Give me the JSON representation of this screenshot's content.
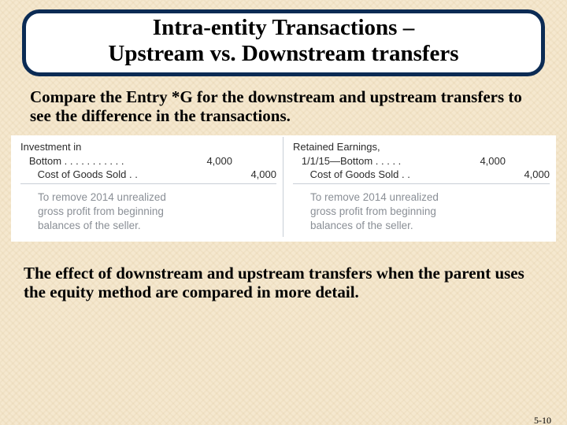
{
  "title": {
    "line1": "Intra-entity Transactions –",
    "line2": "Upstream vs. Downstream transfers"
  },
  "intro": "Compare the Entry *G for the  downstream and upstream transfers to see the difference in the transactions.",
  "entries": {
    "left": {
      "acct1a": "Investment in",
      "acct1b": "   Bottom . . . . . . . . . . .",
      "debit1": "4,000",
      "acct2": "      Cost of Goods Sold . .",
      "credit2": "4,000",
      "explain1": "To remove 2014 unrealized",
      "explain2": "gross profit from beginning",
      "explain3": "balances of the seller."
    },
    "right": {
      "acct1a": "Retained Earnings,",
      "acct1b": "   1/1/15—Bottom . . . . .",
      "debit1": "4,000",
      "acct2": "      Cost of Goods Sold . .",
      "credit2": "4,000",
      "explain1": "To remove 2014 unrealized",
      "explain2": "gross profit from beginning",
      "explain3": "balances of the seller."
    }
  },
  "conclusion": "The effect of downstream and upstream transfers when the parent uses the equity method are compared in more detail.",
  "page_number": "5-10",
  "colors": {
    "title_border": "#0b2b54",
    "panel_bg": "#ffffff",
    "grid_line": "#c9cfd6",
    "explain_text": "#8a8f96",
    "slide_bg": "#f5e8cf"
  }
}
